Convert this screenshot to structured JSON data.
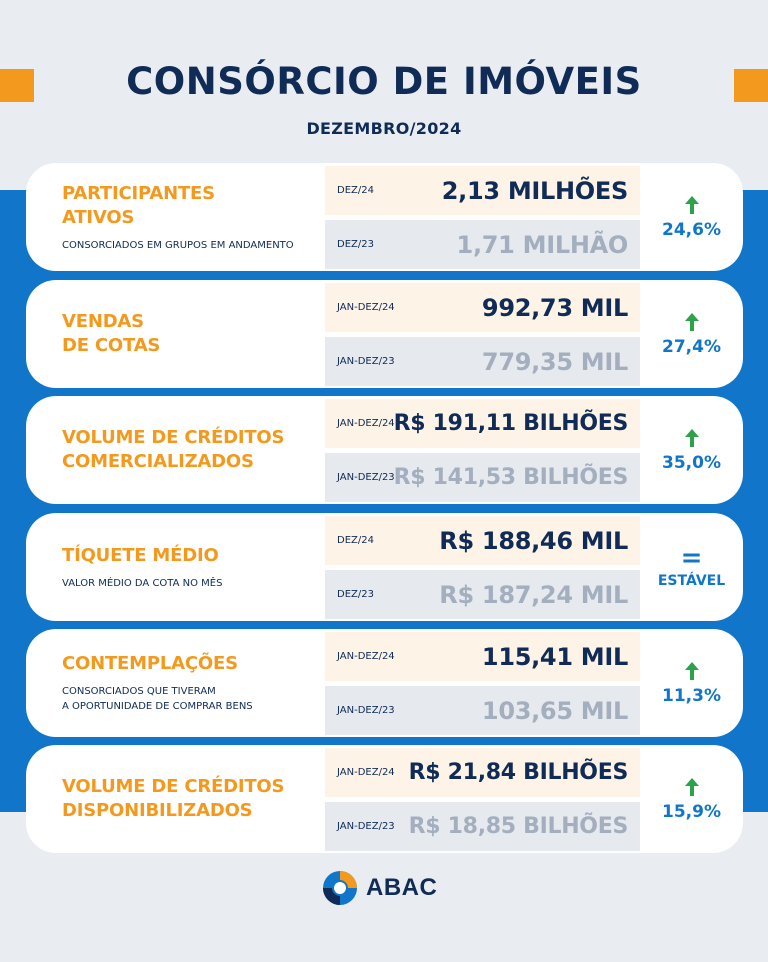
{
  "header": {
    "title": "CONSÓRCIO DE IMÓVEIS",
    "subtitle": "DEZEMBRO/2024"
  },
  "colors": {
    "accent_orange": "#f39a1e",
    "navy": "#0f2b56",
    "blue": "#1176c9",
    "up_green": "#2ca24a"
  },
  "cards": [
    {
      "title": "PARTICIPANTES\nATIVOS",
      "description": "CONSORCIADOS EM GRUPOS EM ANDAMENTO",
      "current_period": "DEZ/24",
      "current_value": "2,13 MILHÕES",
      "previous_period": "DEZ/23",
      "previous_value": "1,71 MILHÃO",
      "change": "24,6%",
      "trend_icon": "arrow-up-icon"
    },
    {
      "title": "VENDAS\nDE COTAS",
      "description": "",
      "current_period": "JAN-DEZ/24",
      "current_value": "992,73 MIL",
      "previous_period": "JAN-DEZ/23",
      "previous_value": "779,35 MIL",
      "change": "27,4%",
      "trend_icon": "arrow-up-icon"
    },
    {
      "title": "VOLUME DE CRÉDITOS\nCOMERCIALIZADOS",
      "description": "",
      "current_period": "JAN-DEZ/24",
      "current_value": "R$ 191,11 BILHÕES",
      "previous_period": "JAN-DEZ/23",
      "previous_value": "R$ 141,53 BILHÕES",
      "change": "35,0%",
      "trend_icon": "arrow-up-icon"
    },
    {
      "title": "TÍQUETE MÉDIO",
      "description": "VALOR MÉDIO DA COTA NO MÊS",
      "current_period": "DEZ/24",
      "current_value": "R$ 188,46 MIL",
      "previous_period": "DEZ/23",
      "previous_value": "R$ 187,24 MIL",
      "change": "ESTÁVEL",
      "trend_symbol": "=",
      "trend_icon": "equals-icon"
    },
    {
      "title": "CONTEMPLAÇÕES",
      "description": "CONSORCIADOS QUE TIVERAM\nA OPORTUNIDADE DE COMPRAR BENS",
      "current_period": "JAN-DEZ/24",
      "current_value": "115,41 MIL",
      "previous_period": "JAN-DEZ/23",
      "previous_value": "103,65 MIL",
      "change": "11,3%",
      "trend_icon": "arrow-up-icon"
    },
    {
      "title": "VOLUME DE CRÉDITOS\nDISPONIBILIZADOS",
      "description": "",
      "current_period": "JAN-DEZ/24",
      "current_value": "R$ 21,84 BILHÕES",
      "previous_period": "JAN-DEZ/23",
      "previous_value": "R$ 18,85 BILHÕES",
      "change": "15,9%",
      "trend_icon": "arrow-up-icon"
    }
  ],
  "footer": {
    "logo_text": "ABAC",
    "logo_icon": "abac-logo-icon"
  }
}
